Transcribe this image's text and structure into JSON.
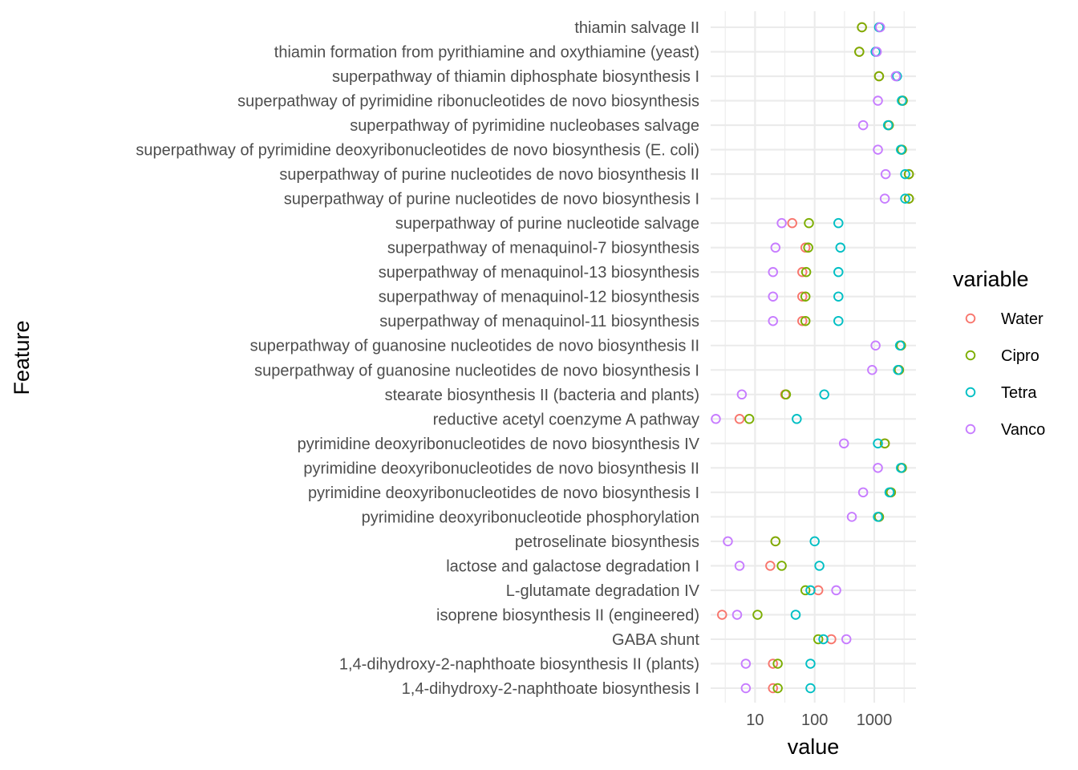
{
  "chart_data": {
    "type": "scatter",
    "xlabel": "value",
    "ylabel": "Feature",
    "x_scale": "log10",
    "xlim": [
      1.8,
      5000
    ],
    "x_ticks": [
      10,
      100,
      1000
    ],
    "x_tick_labels": [
      "10",
      "100",
      "1000"
    ],
    "grid": true,
    "legend": {
      "title": "variable",
      "position": "right"
    },
    "categories": [
      "1,4-dihydroxy-2-naphthoate biosynthesis I",
      "1,4-dihydroxy-2-naphthoate biosynthesis II (plants)",
      "GABA shunt",
      "isoprene biosynthesis II (engineered)",
      "L-glutamate degradation IV",
      "lactose and galactose degradation I",
      "petroselinate biosynthesis",
      "pyrimidine deoxyribonucleotide phosphorylation",
      "pyrimidine deoxyribonucleotides de novo biosynthesis I",
      "pyrimidine deoxyribonucleotides de novo biosynthesis II",
      "pyrimidine deoxyribonucleotides de novo biosynthesis IV",
      "reductive acetyl coenzyme A pathway",
      "stearate biosynthesis II (bacteria and plants)",
      "superpathway of guanosine nucleotides de novo biosynthesis I",
      "superpathway of guanosine nucleotides de novo biosynthesis II",
      "superpathway of menaquinol-11 biosynthesis",
      "superpathway of menaquinol-12 biosynthesis",
      "superpathway of menaquinol-13 biosynthesis",
      "superpathway of menaquinol-7 biosynthesis",
      "superpathway of purine nucleotide salvage",
      "superpathway of purine nucleotides de novo biosynthesis I",
      "superpathway of purine nucleotides de novo biosynthesis II",
      "superpathway of pyrimidine deoxyribonucleotides de novo biosynthesis (E. coli)",
      "superpathway of pyrimidine nucleobases salvage",
      "superpathway of pyrimidine ribonucleotides de novo biosynthesis",
      "superpathway of thiamin diphosphate biosynthesis I",
      "thiamin formation from pyrithiamine and oxythiamine (yeast)",
      "thiamin salvage II"
    ],
    "series": [
      {
        "name": "Water",
        "color": "#F8766D",
        "values": [
          20,
          20,
          190,
          2.8,
          115,
          18,
          22,
          1200,
          1900,
          2900,
          1500,
          5.5,
          32,
          2600,
          2800,
          62,
          62,
          62,
          70,
          42,
          3800,
          3800,
          2900,
          1750,
          3000,
          1200,
          560,
          620
        ]
      },
      {
        "name": "Cipro",
        "color": "#7CAE00",
        "values": [
          24,
          24,
          115,
          11,
          70,
          28,
          22,
          1200,
          1900,
          2900,
          1500,
          8,
          33,
          2600,
          2800,
          70,
          70,
          72,
          78,
          80,
          3800,
          3800,
          2900,
          1750,
          3000,
          1200,
          560,
          620
        ]
      },
      {
        "name": "Tetra",
        "color": "#00BFC4",
        "values": [
          85,
          85,
          140,
          48,
          85,
          120,
          100,
          1150,
          1800,
          2800,
          1150,
          50,
          145,
          2500,
          2700,
          250,
          250,
          250,
          270,
          250,
          3300,
          3300,
          2800,
          1700,
          2900,
          2400,
          1050,
          1200
        ]
      },
      {
        "name": "Vanco",
        "color": "#C77CFF",
        "values": [
          7,
          7,
          340,
          5,
          230,
          5.5,
          3.5,
          420,
          650,
          1150,
          310,
          2.2,
          6,
          920,
          1050,
          20,
          20,
          20,
          22,
          28,
          1500,
          1550,
          1150,
          650,
          1150,
          2300,
          1100,
          1250
        ]
      }
    ]
  }
}
